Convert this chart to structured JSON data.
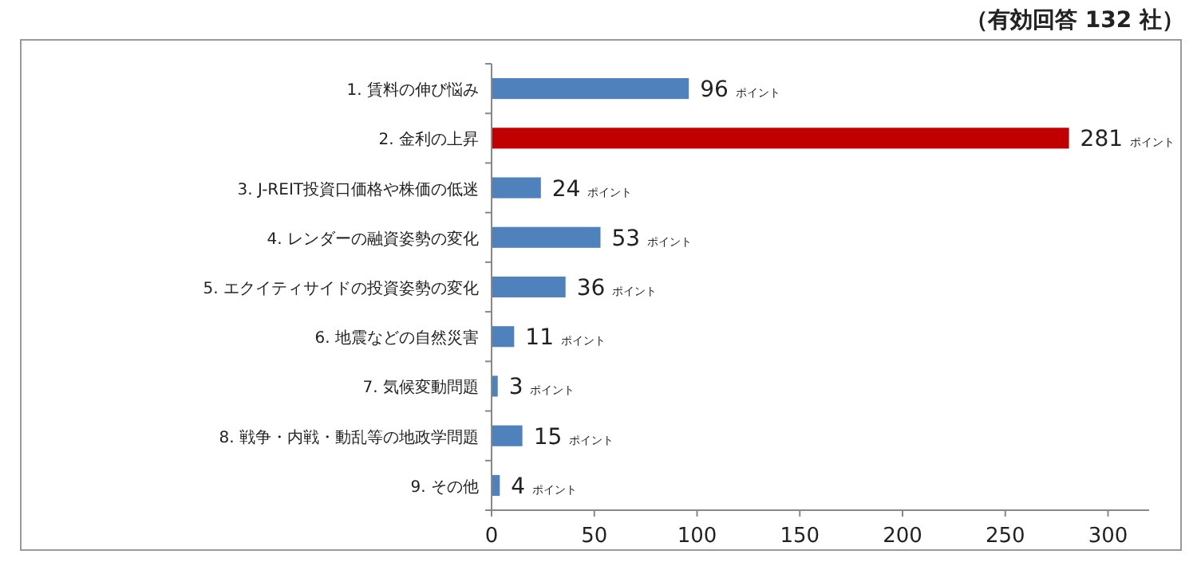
{
  "chart_data": {
    "type": "bar",
    "orientation": "horizontal",
    "annotations": [
      "（有効回答 132 社）"
    ],
    "categories": [
      "1.  賃料の伸び悩み",
      "2.  金利の上昇",
      "3.  J-REIT投資口価格や株価の低迷",
      "4.  レンダーの融資姿勢の変化",
      "5.  エクイティサイドの投資姿勢の変化",
      "6.  地震などの自然災害",
      "7.  気候変動問題",
      "8.  戦争・内戦・動乱等の地政学問題",
      "9.  その他"
    ],
    "values": [
      96,
      281,
      24,
      53,
      36,
      11,
      3,
      15,
      4
    ],
    "colors": [
      "#4f81bd",
      "#c00000",
      "#4f81bd",
      "#4f81bd",
      "#4f81bd",
      "#4f81bd",
      "#4f81bd",
      "#4f81bd",
      "#4f81bd"
    ],
    "value_labels": [
      "96 ポイント",
      "281 ポイント",
      "24 ポイント",
      "53 ポイント",
      "36 ポイント",
      "11 ポイント",
      "3 ポイント",
      "15 ポイント",
      "4 ポイント"
    ],
    "xlim": [
      0,
      320
    ],
    "xticks": [
      0,
      50,
      100,
      150,
      200,
      250,
      300
    ],
    "grid": false
  }
}
